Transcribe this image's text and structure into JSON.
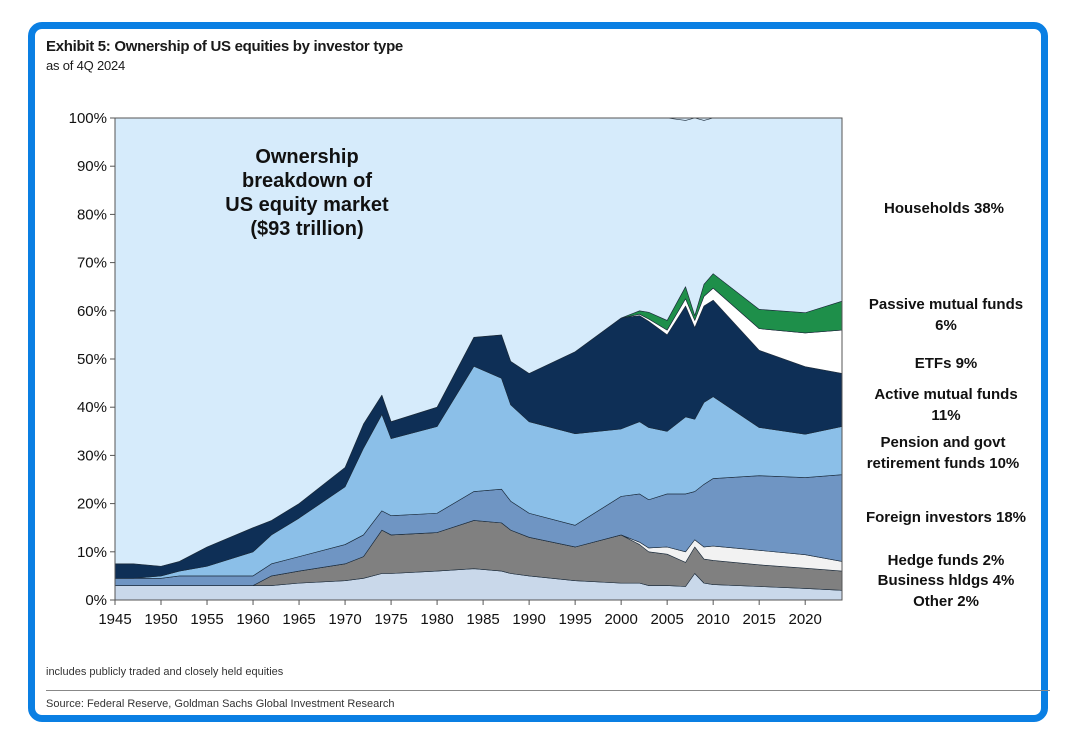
{
  "header": {
    "title": "Exhibit 5: Ownership of US equities by investor type",
    "subtitle": "as of 4Q 2024"
  },
  "footer": {
    "note": "includes publicly traded and closely held equities",
    "source": "Source: Federal Reserve, Goldman Sachs Global Investment Research"
  },
  "chart_data": {
    "type": "area",
    "stacked": true,
    "title": "Exhibit 5: Ownership of US equities by investor type",
    "annotation": [
      "Ownership",
      "breakdown  of",
      "US equity market",
      "($93 trillion)"
    ],
    "xlim": [
      1945,
      2024
    ],
    "ylim": [
      0,
      100
    ],
    "x_ticks": [
      "1945",
      "1950",
      "1955",
      "1960",
      "1965",
      "1970",
      "1975",
      "1980",
      "1985",
      "1990",
      "1995",
      "2000",
      "2005",
      "2010",
      "2015",
      "2020"
    ],
    "y_ticks": [
      "0%",
      "10%",
      "20%",
      "30%",
      "40%",
      "50%",
      "60%",
      "70%",
      "80%",
      "90%",
      "100%"
    ],
    "x": [
      1945,
      1947,
      1950,
      1952,
      1955,
      1960,
      1962,
      1965,
      1970,
      1972,
      1974,
      1975,
      1980,
      1984,
      1987,
      1988,
      1990,
      1995,
      2000,
      2002,
      2003,
      2005,
      2007,
      2008,
      2009,
      2010,
      2015,
      2020,
      2024
    ],
    "series": [
      {
        "name": "Other",
        "color": "#c9d8ea",
        "values": [
          3,
          3,
          3,
          3,
          3,
          3,
          3,
          3.5,
          4,
          4.5,
          5.5,
          5.5,
          6,
          6.5,
          6,
          5.5,
          5,
          4,
          3.5,
          3.5,
          3,
          3,
          2.8,
          5.5,
          3.5,
          3.2,
          2.8,
          2.4,
          2
        ]
      },
      {
        "name": "Business hldgs",
        "color": "#808080",
        "values": [
          0,
          0,
          0,
          0,
          0,
          0,
          2,
          2.5,
          3.5,
          4.5,
          9,
          8,
          8,
          10,
          10,
          9,
          8,
          7,
          10,
          8,
          7,
          6.5,
          5,
          5.5,
          5,
          5,
          4.5,
          4.2,
          4
        ]
      },
      {
        "name": "Hedge funds",
        "color": "#f2f2f2",
        "values": [
          0,
          0,
          0,
          0,
          0,
          0,
          0,
          0,
          0,
          0,
          0,
          0,
          0,
          0,
          0,
          0,
          0,
          0,
          0,
          0.5,
          0.8,
          1.5,
          2.2,
          1.5,
          2.5,
          3,
          3,
          2.8,
          2
        ]
      },
      {
        "name": "Foreign investors",
        "color": "#6f95c3",
        "values": [
          1.5,
          1.5,
          1.5,
          2,
          2,
          2,
          2.5,
          3,
          4,
          4.5,
          4,
          4,
          4,
          6,
          7,
          6,
          5,
          4.5,
          8,
          10,
          10,
          11,
          12,
          10,
          13,
          14,
          15.5,
          16,
          18
        ]
      },
      {
        "name": "Pension and govt retirement funds",
        "color": "#8bbfe8",
        "values": [
          0,
          0,
          0.5,
          1,
          2,
          5,
          6,
          8,
          12,
          18,
          20,
          16,
          18,
          26,
          23,
          20,
          19,
          19,
          14,
          15,
          15,
          13,
          16,
          15,
          17,
          17,
          10,
          9,
          10
        ]
      },
      {
        "name": "Active mutual funds",
        "color": "#0e2f56",
        "values": [
          3,
          3,
          2,
          2,
          4,
          5,
          3,
          3,
          4,
          5,
          4,
          3.5,
          4,
          6,
          9,
          9,
          10,
          17,
          23,
          22,
          22,
          20,
          23,
          19,
          20,
          20,
          16,
          14,
          11
        ]
      },
      {
        "name": "ETFs",
        "color": "#ffffff",
        "values": [
          0,
          0,
          0,
          0,
          0,
          0,
          0,
          0,
          0,
          0,
          0,
          0,
          0,
          0,
          0,
          0,
          0,
          0,
          0,
          0.3,
          0.5,
          1,
          1.5,
          1.5,
          2,
          2.5,
          4.5,
          7,
          9
        ]
      },
      {
        "name": "Passive mutual funds",
        "color": "#1e8f4a",
        "values": [
          0,
          0,
          0,
          0,
          0,
          0,
          0,
          0,
          0,
          0,
          0,
          0,
          0,
          0,
          0,
          0,
          0,
          0,
          0,
          0.7,
          1.4,
          2,
          2.5,
          1,
          2.5,
          3,
          4,
          4.2,
          6
        ]
      },
      {
        "name": "Households",
        "color": "#d6ebfb",
        "values": [
          92.5,
          92.5,
          93,
          92,
          89,
          85,
          83.5,
          80,
          72.5,
          63.5,
          57.5,
          63,
          60,
          45.5,
          45,
          50.5,
          53,
          48.5,
          41.5,
          40,
          40.3,
          42,
          34.5,
          41,
          34,
          32.3,
          39.7,
          40.4,
          38
        ]
      }
    ],
    "legend_labels": [
      {
        "text": [
          "Households 38%"
        ]
      },
      {
        "text": [
          "Passive mutual funds",
          "6%"
        ]
      },
      {
        "text": [
          "ETFs 9%"
        ]
      },
      {
        "text": [
          "Active mutual funds",
          "11%"
        ]
      },
      {
        "text": [
          "Pension and govt",
          "retirement funds 10%"
        ]
      },
      {
        "text": [
          "Foreign investors 18%"
        ]
      },
      {
        "text": [
          "Hedge funds 2%"
        ]
      },
      {
        "text": [
          "Business hldgs 4%"
        ]
      },
      {
        "text": [
          "Other 2%"
        ]
      }
    ]
  }
}
